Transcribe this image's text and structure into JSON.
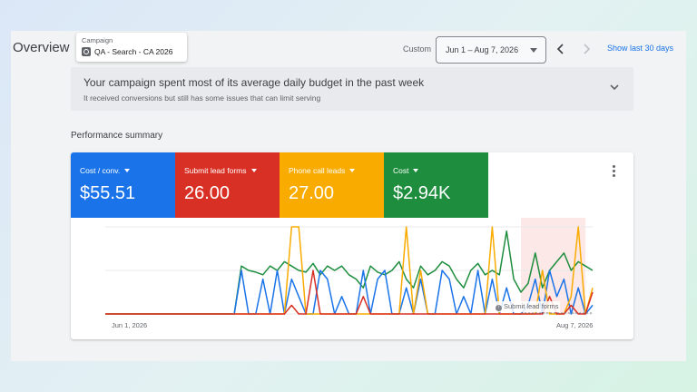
{
  "header": {
    "page_title": "Overview",
    "campaign_label": "Campaign",
    "campaign_value": "QA - Search - CA 2026",
    "custom_label": "Custom",
    "date_range": "Jun 1 – Aug 7, 2026",
    "show_last_link": "Show last 30 days"
  },
  "alert": {
    "headline": "Your campaign spent most of its average daily budget in the past week",
    "subtext": "It received conversions but still has some issues that can limit serving"
  },
  "summary": {
    "title": "Performance summary",
    "tiles": [
      {
        "label": "Cost / conv.",
        "value": "$55.51",
        "color": "#1a73e8"
      },
      {
        "label": "Submit lead forms",
        "value": "26.00",
        "color": "#d93025"
      },
      {
        "label": "Phone call leads",
        "value": "27.00",
        "color": "#f9ab00"
      },
      {
        "label": "Cost",
        "value": "$2.94K",
        "color": "#1e8e3e"
      }
    ]
  },
  "chart_data": {
    "type": "line",
    "x_start_label": "Jun 1, 2026",
    "x_end_label": "Aug 7, 2026",
    "annotation": "Submit lead forms",
    "highlight_range": [
      58,
      67
    ],
    "highlight_color": "#fce8e6",
    "ylim": [
      0,
      100
    ],
    "series": [
      {
        "color": "#1e8e3e",
        "values": [
          0,
          0,
          0,
          0,
          0,
          0,
          0,
          0,
          0,
          0,
          0,
          0,
          0,
          0,
          0,
          0,
          0,
          0,
          0,
          55,
          50,
          48,
          45,
          55,
          50,
          60,
          55,
          50,
          48,
          58,
          45,
          55,
          50,
          55,
          45,
          40,
          30,
          55,
          48,
          45,
          50,
          60,
          40,
          30,
          55,
          45,
          50,
          60,
          55,
          40,
          30,
          50,
          58,
          45,
          50,
          45,
          95,
          40,
          25,
          35,
          70,
          30,
          50,
          60,
          70,
          50,
          60,
          55,
          50
        ]
      },
      {
        "color": "#1a73e8",
        "values": [
          0,
          0,
          0,
          0,
          0,
          0,
          0,
          0,
          0,
          0,
          0,
          0,
          0,
          0,
          0,
          0,
          0,
          0,
          0,
          50,
          0,
          0,
          40,
          0,
          50,
          0,
          40,
          20,
          0,
          0,
          50,
          40,
          0,
          20,
          0,
          0,
          50,
          0,
          40,
          50,
          0,
          0,
          30,
          0,
          40,
          0,
          0,
          50,
          40,
          0,
          20,
          0,
          50,
          0,
          40,
          0,
          30,
          0,
          0,
          10,
          40,
          0,
          50,
          20,
          40,
          0,
          30,
          0,
          10
        ]
      },
      {
        "color": "#f9ab00",
        "values": [
          0,
          0,
          0,
          0,
          0,
          0,
          0,
          0,
          0,
          0,
          0,
          0,
          0,
          0,
          0,
          0,
          0,
          0,
          0,
          0,
          0,
          0,
          0,
          0,
          0,
          0,
          100,
          100,
          0,
          0,
          0,
          0,
          0,
          0,
          0,
          0,
          0,
          0,
          0,
          0,
          0,
          0,
          100,
          0,
          50,
          0,
          0,
          0,
          0,
          0,
          0,
          0,
          0,
          0,
          100,
          0,
          0,
          0,
          0,
          0,
          0,
          50,
          0,
          0,
          0,
          20,
          100,
          0,
          30
        ]
      },
      {
        "color": "#d93025",
        "values": [
          0,
          0,
          0,
          0,
          0,
          0,
          0,
          0,
          0,
          0,
          0,
          0,
          0,
          0,
          0,
          0,
          0,
          0,
          0,
          0,
          0,
          0,
          0,
          0,
          0,
          0,
          10,
          0,
          0,
          50,
          0,
          0,
          0,
          0,
          0,
          0,
          20,
          0,
          0,
          0,
          0,
          0,
          0,
          0,
          0,
          0,
          0,
          0,
          0,
          0,
          0,
          0,
          0,
          0,
          0,
          0,
          0,
          0,
          0,
          0,
          0,
          0,
          20,
          0,
          0,
          10,
          0,
          0,
          25
        ]
      }
    ]
  }
}
